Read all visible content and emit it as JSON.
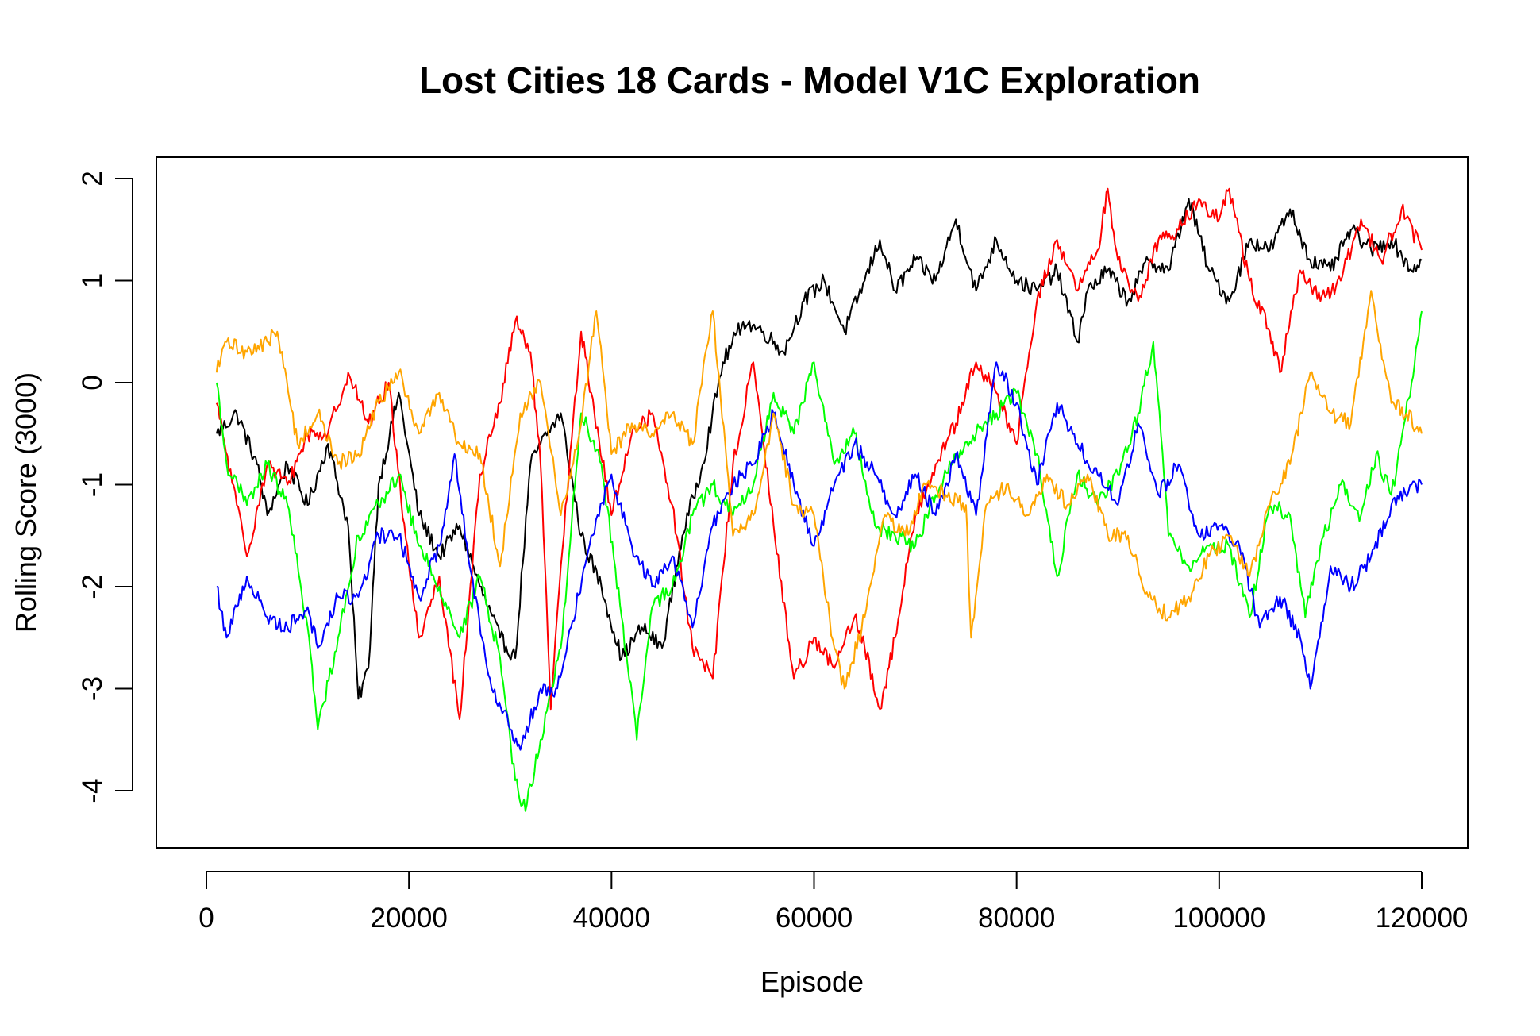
{
  "chart_data": {
    "type": "line",
    "title": "Lost Cities 18 Cards - Model V1C Exploration",
    "xlabel": "Episode",
    "ylabel": "Rolling Score (3000)",
    "xlim": [
      1000,
      120000
    ],
    "ylim": [
      -4.3,
      2.0
    ],
    "x_ticks": [
      0,
      20000,
      40000,
      60000,
      80000,
      100000,
      120000
    ],
    "x_tick_labels": [
      "0",
      "20000",
      "40000",
      "60000",
      "80000",
      "100000",
      "120000"
    ],
    "y_ticks": [
      -4,
      -3,
      -2,
      -1,
      0,
      1,
      2
    ],
    "y_tick_labels": [
      "-4",
      "-3",
      "-2",
      "-1",
      "0",
      "1",
      "2"
    ],
    "grid": false,
    "legend": "none",
    "series": [
      {
        "color": "#000000",
        "x": [
          1000,
          3000,
          5000,
          6000,
          8000,
          10000,
          12000,
          14000,
          15000,
          16000,
          17000,
          19000,
          21000,
          23000,
          25000,
          27000,
          29000,
          30500,
          32000,
          33000,
          35000,
          37000,
          39000,
          41000,
          43000,
          45000,
          47000,
          49000,
          51000,
          53000,
          55000,
          57000,
          59000,
          61000,
          63000,
          65000,
          66500,
          68000,
          70000,
          72000,
          74000,
          76000,
          78000,
          80000,
          82000,
          84000,
          86000,
          87000,
          89000,
          91000,
          93000,
          95000,
          97000,
          99000,
          101000,
          103000,
          105000,
          107000,
          109000,
          111000,
          113000,
          115000,
          117000,
          119000,
          120000
        ],
        "values": [
          -0.5,
          -0.3,
          -0.8,
          -1.3,
          -0.8,
          -1.2,
          -0.6,
          -1.4,
          -3.1,
          -2.8,
          -1.0,
          -0.1,
          -1.3,
          -1.7,
          -1.4,
          -2.0,
          -2.5,
          -2.7,
          -0.8,
          -0.6,
          -0.3,
          -1.5,
          -2.0,
          -2.7,
          -2.4,
          -2.6,
          -1.5,
          -0.8,
          0.2,
          0.6,
          0.5,
          0.3,
          0.8,
          1.0,
          0.5,
          1.0,
          1.4,
          0.9,
          1.2,
          1.0,
          1.6,
          0.9,
          1.4,
          1.0,
          0.9,
          1.1,
          0.4,
          0.9,
          1.1,
          0.8,
          1.2,
          1.1,
          1.8,
          1.1,
          0.8,
          1.4,
          1.3,
          1.7,
          1.2,
          1.1,
          1.5,
          1.3,
          1.4,
          1.1,
          1.2
        ]
      },
      {
        "color": "#ff0000",
        "x": [
          1000,
          3000,
          4000,
          6000,
          8000,
          10000,
          12000,
          14000,
          16000,
          18000,
          20000,
          21000,
          23000,
          25000,
          27000,
          29000,
          30500,
          32000,
          33000,
          34000,
          35000,
          37000,
          38000,
          40000,
          42000,
          44000,
          46000,
          48000,
          50000,
          52000,
          54000,
          56000,
          58000,
          60000,
          62000,
          64000,
          65000,
          66500,
          68000,
          70000,
          72000,
          74000,
          76000,
          78000,
          80000,
          82000,
          84000,
          86000,
          88000,
          89000,
          90000,
          92000,
          94000,
          96000,
          98000,
          100000,
          101000,
          103000,
          105000,
          106000,
          108000,
          110000,
          112000,
          114000,
          116000,
          118000,
          120000
        ],
        "values": [
          -0.2,
          -1.2,
          -1.7,
          -0.8,
          -1.0,
          -0.5,
          -0.5,
          0.1,
          -0.4,
          0.0,
          -1.8,
          -2.5,
          -1.9,
          -3.3,
          -0.9,
          -0.2,
          0.6,
          0.3,
          -0.8,
          -3.2,
          -1.8,
          0.5,
          -0.1,
          -1.3,
          -0.5,
          -0.3,
          -1.2,
          -2.6,
          -2.9,
          -0.8,
          0.2,
          -1.4,
          -2.9,
          -2.5,
          -2.8,
          -2.3,
          -2.6,
          -3.2,
          -2.5,
          -1.3,
          -0.8,
          -0.4,
          0.2,
          -0.1,
          -0.6,
          0.8,
          1.4,
          0.9,
          1.3,
          1.9,
          1.2,
          0.8,
          1.4,
          1.5,
          1.8,
          1.6,
          1.9,
          1.0,
          0.5,
          0.1,
          1.1,
          0.8,
          1.0,
          1.6,
          1.2,
          1.7,
          1.3
        ]
      },
      {
        "color": "#00ff00",
        "x": [
          1000,
          2000,
          4000,
          6000,
          8000,
          10000,
          11000,
          13000,
          15000,
          17000,
          19000,
          21000,
          23000,
          25000,
          27000,
          29000,
          30500,
          31500,
          33000,
          35000,
          37000,
          39000,
          41000,
          42500,
          44000,
          46000,
          48000,
          50000,
          52000,
          54000,
          56000,
          58000,
          60000,
          62000,
          64000,
          66000,
          68000,
          70000,
          72000,
          74000,
          76000,
          78000,
          80000,
          82000,
          84000,
          86000,
          88000,
          90000,
          92000,
          93500,
          95000,
          97000,
          99000,
          101000,
          103000,
          105000,
          107000,
          108500,
          110000,
          112000,
          114000,
          115500,
          117000,
          119000,
          120000
        ],
        "values": [
          0.0,
          -0.8,
          -1.2,
          -0.8,
          -1.2,
          -2.4,
          -3.4,
          -2.5,
          -1.5,
          -1.2,
          -0.9,
          -1.6,
          -2.0,
          -2.5,
          -1.9,
          -2.7,
          -3.9,
          -4.2,
          -3.5,
          -2.6,
          -0.3,
          -0.8,
          -2.3,
          -3.5,
          -2.2,
          -2.0,
          -1.3,
          -1.0,
          -1.3,
          -1.0,
          -0.1,
          -0.5,
          0.2,
          -0.8,
          -0.5,
          -1.4,
          -1.5,
          -1.6,
          -1.1,
          -0.7,
          -0.5,
          -0.3,
          -0.1,
          -0.7,
          -1.9,
          -0.9,
          -1.2,
          -0.9,
          -0.3,
          0.4,
          -1.5,
          -1.8,
          -1.6,
          -1.6,
          -2.3,
          -1.2,
          -1.3,
          -2.3,
          -1.6,
          -1.0,
          -1.3,
          -0.7,
          -1.1,
          0.0,
          0.7
        ]
      },
      {
        "color": "#0000ff",
        "x": [
          1000,
          2000,
          3000,
          4000,
          6000,
          8000,
          10000,
          11000,
          13000,
          15000,
          17000,
          19000,
          21000,
          23000,
          24500,
          26000,
          28000,
          30000,
          31000,
          33000,
          34500,
          36000,
          38000,
          40000,
          42000,
          44000,
          46000,
          48000,
          50000,
          52000,
          54000,
          56000,
          58000,
          60000,
          62000,
          64000,
          66000,
          68000,
          70000,
          72000,
          74000,
          76000,
          78000,
          80000,
          82000,
          84000,
          86000,
          88000,
          90000,
          92000,
          94000,
          96000,
          98000,
          100000,
          102000,
          104000,
          106000,
          108000,
          109000,
          111000,
          113000,
          115000,
          117000,
          119000,
          120000
        ],
        "values": [
          -2.0,
          -2.5,
          -2.2,
          -1.9,
          -2.3,
          -2.4,
          -2.2,
          -2.6,
          -2.1,
          -2.1,
          -1.5,
          -1.5,
          -2.1,
          -1.6,
          -0.7,
          -1.8,
          -2.9,
          -3.4,
          -3.6,
          -3.0,
          -3.0,
          -2.4,
          -1.5,
          -0.9,
          -1.6,
          -2.0,
          -1.7,
          -2.4,
          -1.4,
          -1.0,
          -0.8,
          -0.3,
          -1.0,
          -1.6,
          -1.0,
          -0.6,
          -0.9,
          -1.3,
          -0.9,
          -1.3,
          -0.7,
          -1.3,
          0.2,
          -0.2,
          -1.0,
          -0.2,
          -0.6,
          -0.9,
          -1.2,
          -0.4,
          -1.1,
          -0.8,
          -1.5,
          -1.4,
          -1.6,
          -2.4,
          -2.1,
          -2.5,
          -3.0,
          -1.8,
          -2.0,
          -1.7,
          -1.2,
          -1.0,
          -1.0
        ]
      },
      {
        "color": "#ffa500",
        "x": [
          1000,
          2000,
          4000,
          6000,
          7000,
          9000,
          11000,
          13000,
          15000,
          17000,
          19000,
          21000,
          23000,
          25000,
          27000,
          29000,
          31000,
          33000,
          35000,
          37000,
          38500,
          40000,
          42000,
          44000,
          46000,
          48000,
          50000,
          52000,
          54000,
          56000,
          58000,
          60000,
          62000,
          63000,
          65000,
          67000,
          69000,
          71000,
          73000,
          75000,
          75500,
          77000,
          79000,
          81000,
          83000,
          85000,
          87000,
          89000,
          91000,
          93000,
          95000,
          97000,
          99000,
          101000,
          103000,
          105000,
          107000,
          109000,
          111000,
          113000,
          115000,
          117000,
          118500,
          120000
        ],
        "values": [
          0.1,
          0.4,
          0.3,
          0.4,
          0.5,
          -0.6,
          -0.3,
          -0.8,
          -0.7,
          -0.2,
          0.1,
          -0.5,
          -0.1,
          -0.6,
          -0.7,
          -1.8,
          -0.3,
          0.0,
          -1.3,
          -0.4,
          0.7,
          -0.7,
          -0.4,
          -0.5,
          -0.3,
          -0.6,
          0.7,
          -1.5,
          -1.3,
          -0.3,
          -1.2,
          -1.3,
          -2.6,
          -3.0,
          -2.3,
          -1.3,
          -1.5,
          -1.0,
          -1.1,
          -1.2,
          -2.5,
          -1.2,
          -1.0,
          -1.3,
          -0.9,
          -1.2,
          -0.9,
          -1.5,
          -1.5,
          -2.1,
          -2.3,
          -2.1,
          -1.7,
          -1.5,
          -1.9,
          -1.2,
          -0.8,
          0.1,
          -0.3,
          -0.4,
          0.9,
          -0.2,
          -0.3,
          -0.5
        ]
      }
    ]
  }
}
